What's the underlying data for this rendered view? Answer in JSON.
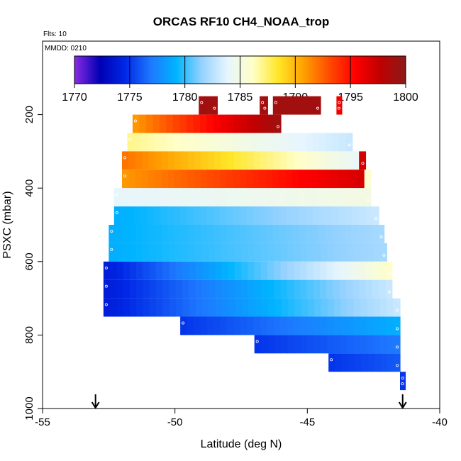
{
  "chart_data": {
    "type": "heatmap",
    "title": "ORCAS RF10 CH4_NOAA_trop",
    "annotations": {
      "flights": "Flts: 10",
      "date": "MMDD: 0210"
    },
    "xlabel": "Latitude (deg N)",
    "ylabel": "PSXC (mbar)",
    "xlim": [
      -55,
      -40
    ],
    "ylim": [
      1000,
      0
    ],
    "x_ticks": [
      -55,
      -50,
      -45,
      -40
    ],
    "y_ticks": [
      200,
      400,
      600,
      800,
      1000
    ],
    "colorbar": {
      "min": 1770,
      "max": 1800,
      "ticks": [
        1770,
        1775,
        1780,
        1785,
        1790,
        1795,
        1800
      ],
      "colors": [
        "#8a2be2",
        "#0000b4",
        "#0028e6",
        "#1e78ff",
        "#00b4ff",
        "#96d2ff",
        "#e6f5ff",
        "#ffffc8",
        "#ffe628",
        "#ffa000",
        "#ff4b00",
        "#ff0000",
        "#c00000",
        "#8b1a1a"
      ]
    },
    "arrows_lat": [
      -53,
      -41.4
    ],
    "rows": [
      {
        "p": 175,
        "segments": [
          {
            "lat0": -49.1,
            "lat1": -48.4,
            "v0": 1799,
            "v1": 1799
          },
          {
            "lat0": -46.8,
            "lat1": -46.5,
            "v0": 1799,
            "v1": 1799
          },
          {
            "lat0": -46.3,
            "lat1": -44.5,
            "v0": 1799,
            "v1": 1799
          },
          {
            "lat0": -43.9,
            "lat1": -43.7,
            "v0": 1796,
            "v1": 1796
          }
        ]
      },
      {
        "p": 225,
        "segments": [
          {
            "lat0": -51.6,
            "lat1": -46.0,
            "v0": 1791,
            "v1": 1799
          }
        ]
      },
      {
        "p": 275,
        "segments": [
          {
            "lat0": -51.8,
            "lat1": -43.3,
            "v0": 1787,
            "v1": 1783
          }
        ]
      },
      {
        "p": 325,
        "segments": [
          {
            "lat0": -52.0,
            "lat1": -42.8,
            "v0": 1792,
            "v1": 1784,
            "last": 1797
          }
        ]
      },
      {
        "p": 375,
        "segments": [
          {
            "lat0": -52.0,
            "lat1": -42.6,
            "v0": 1791,
            "v1": 1797,
            "last": 1786
          }
        ]
      },
      {
        "p": 425,
        "segments": [
          {
            "lat0": -52.3,
            "lat1": -42.6,
            "v0": 1784,
            "v1": 1785
          }
        ]
      },
      {
        "p": 475,
        "segments": [
          {
            "lat0": -52.3,
            "lat1": -42.3,
            "v0": 1779,
            "v1": 1783
          }
        ]
      },
      {
        "p": 525,
        "segments": [
          {
            "lat0": -52.5,
            "lat1": -42.1,
            "v0": 1779,
            "v1": 1782
          }
        ]
      },
      {
        "p": 575,
        "segments": [
          {
            "lat0": -52.5,
            "lat1": -42.0,
            "v0": 1779,
            "v1": 1782
          }
        ]
      },
      {
        "p": 625,
        "segments": [
          {
            "lat0": -52.7,
            "lat1": -41.8,
            "v0": 1774,
            "v1": 1786
          }
        ]
      },
      {
        "p": 675,
        "segments": [
          {
            "lat0": -52.7,
            "lat1": -41.8,
            "v0": 1774,
            "v1": 1783
          }
        ]
      },
      {
        "p": 725,
        "segments": [
          {
            "lat0": -52.7,
            "lat1": -41.5,
            "v0": 1774,
            "v1": 1783
          }
        ]
      },
      {
        "p": 775,
        "segments": [
          {
            "lat0": -49.8,
            "lat1": -41.5,
            "v0": 1775,
            "v1": 1779
          }
        ]
      },
      {
        "p": 825,
        "segments": [
          {
            "lat0": -47.0,
            "lat1": -41.5,
            "v0": 1775,
            "v1": 1777
          }
        ]
      },
      {
        "p": 875,
        "segments": [
          {
            "lat0": -44.2,
            "lat1": -41.5,
            "v0": 1775,
            "v1": 1776
          }
        ]
      },
      {
        "p": 925,
        "segments": [
          {
            "lat0": -41.5,
            "lat1": -41.3,
            "v0": 1775,
            "v1": 1775
          }
        ]
      }
    ]
  }
}
